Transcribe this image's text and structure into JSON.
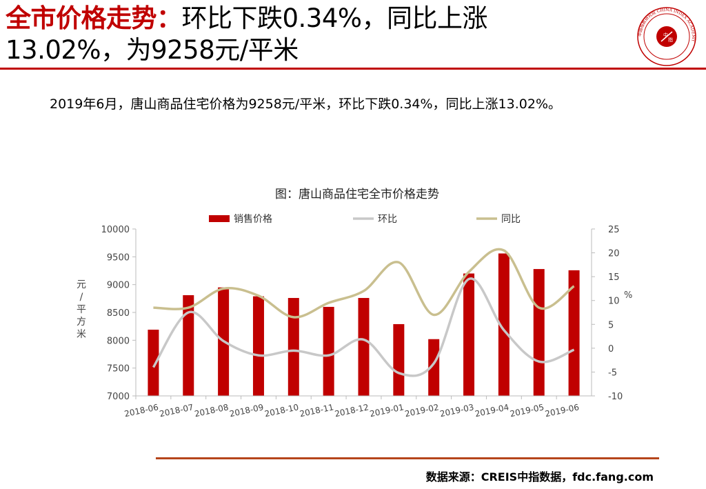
{
  "header": {
    "title_highlight": "全市价格走势：",
    "title_line1_rest": "环比下跌0.34%，同比上涨",
    "title_line2": "13.02%，为9258元/平米"
  },
  "logo": {
    "center_text_1": "中",
    "center_text_2": "指",
    "ring_text": "中国指数研究院 CHINA INDEX ACADEMY"
  },
  "summary": "2019年6月，唐山商品住宅价格为9258元/平米，环比下跌0.34%，同比上涨13.02%。",
  "chart_data": {
    "type": "bar",
    "title": "图：唐山商品住宅全市价格走势",
    "categories": [
      "2018-06",
      "2018-07",
      "2018-08",
      "2018-09",
      "2018-10",
      "2018-11",
      "2018-12",
      "2019-01",
      "2019-02",
      "2019-03",
      "2019-04",
      "2019-05",
      "2019-06"
    ],
    "series": [
      {
        "name": "销售价格",
        "type": "bar",
        "axis": "left",
        "color": "#c00000",
        "values": [
          8190,
          8810,
          8950,
          8790,
          8760,
          8600,
          8760,
          8290,
          8020,
          9200,
          9560,
          9280,
          9258
        ]
      },
      {
        "name": "环比",
        "type": "line",
        "axis": "right",
        "color": "#c8c8c8",
        "values": [
          -4,
          7.5,
          1.5,
          -1.5,
          -0.5,
          -1.5,
          1.8,
          -5.2,
          -3.2,
          14.5,
          3.8,
          -2.8,
          -0.34
        ]
      },
      {
        "name": "同比",
        "type": "line",
        "axis": "right",
        "color": "#c9bf8f",
        "values": [
          8.5,
          8.5,
          12.5,
          11,
          6.5,
          9.5,
          12,
          18,
          7,
          16,
          20.5,
          8.5,
          13.02
        ]
      }
    ],
    "ylabel": "元/平方米",
    "ylabel_chars": [
      "元",
      "/",
      "平",
      "方",
      "米"
    ],
    "y2label": "%",
    "ylim": [
      7000,
      10000
    ],
    "y_ticks": [
      7000,
      7500,
      8000,
      8500,
      9000,
      9500,
      10000
    ],
    "y2lim": [
      -10,
      25
    ],
    "y2_ticks": [
      -10,
      -5,
      0,
      5,
      10,
      15,
      20,
      25
    ],
    "legend_position": "top-center",
    "grid": false
  },
  "source": "数据来源：CREIS中指数据，fdc.fang.com"
}
